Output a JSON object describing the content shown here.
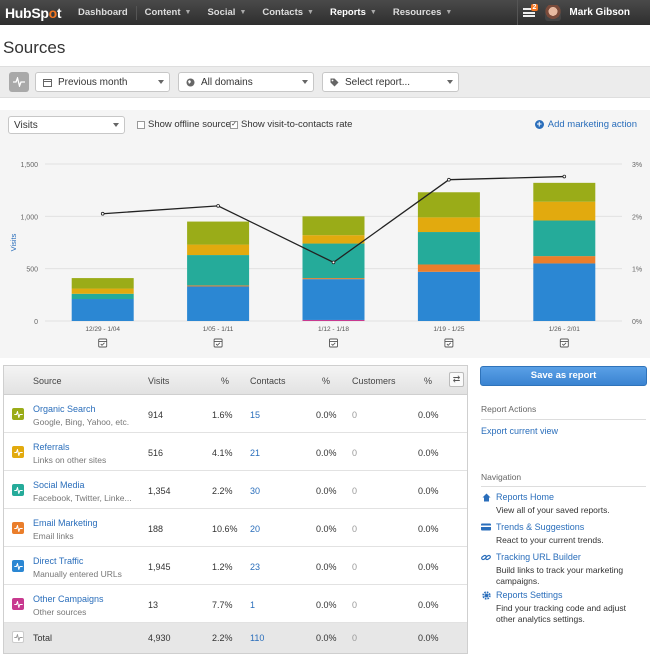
{
  "topbar": {
    "logo_main": "HubSp",
    "logo_dot": "o",
    "logo_end": "t",
    "nav": [
      {
        "label": "Dashboard",
        "caret": false,
        "active": false
      },
      {
        "label": "Content",
        "caret": true,
        "active": false
      },
      {
        "label": "Social",
        "caret": true,
        "active": false
      },
      {
        "label": "Contacts",
        "caret": true,
        "active": false
      },
      {
        "label": "Reports",
        "caret": true,
        "active": true
      },
      {
        "label": "Resources",
        "caret": true,
        "active": false
      }
    ],
    "notification_count": "2",
    "user_name": "Mark Gibson"
  },
  "page": {
    "title": "Sources"
  },
  "filters": {
    "date_range": "Previous month",
    "domains": "All domains",
    "report": "Select report..."
  },
  "chart_controls": {
    "metric": "Visits",
    "show_offline": "Show offline sources",
    "show_offline_checked": false,
    "show_visit_to_contacts": "Show visit-to-contacts rate",
    "show_visit_to_contacts_checked": true,
    "add_marketing_action": "Add marketing action"
  },
  "chart_data": {
    "type": "bar",
    "stacked": true,
    "categories": [
      "12/29 - 1/04",
      "1/05 - 1/11",
      "1/12 - 1/18",
      "1/19 - 1/25",
      "1/26 - 2/01"
    ],
    "ylabel": "Visits",
    "ylim": [
      0,
      1500
    ],
    "yticks": [
      "0",
      "500",
      "1,000",
      "1,500"
    ],
    "y2ticks": [
      "0%",
      "1%",
      "2%",
      "3%"
    ],
    "y2lim": [
      0,
      3
    ],
    "grid": true,
    "series": [
      {
        "name": "Other Campaigns",
        "color": "#c8398f",
        "values": [
          0,
          0,
          10,
          0,
          0
        ]
      },
      {
        "name": "Direct Traffic",
        "color": "#2b87d3",
        "values": [
          210,
          330,
          390,
          470,
          550
        ]
      },
      {
        "name": "Email Marketing",
        "color": "#ea7e2b",
        "values": [
          0,
          10,
          10,
          70,
          70
        ]
      },
      {
        "name": "Social Media",
        "color": "#25ab9a",
        "values": [
          50,
          290,
          330,
          310,
          340
        ]
      },
      {
        "name": "Referrals",
        "color": "#e2aa0e",
        "values": [
          50,
          100,
          80,
          140,
          180
        ]
      },
      {
        "name": "Organic Search",
        "color": "#9aac18",
        "values": [
          100,
          220,
          180,
          240,
          180
        ]
      }
    ],
    "line": {
      "values": [
        2.05,
        2.2,
        1.12,
        2.7,
        2.76
      ],
      "axis": "right",
      "color": "#222222"
    }
  },
  "table": {
    "headers": [
      "Source",
      "Visits",
      "%",
      "Contacts",
      "%",
      "Customers",
      "%"
    ],
    "rows": [
      {
        "name": "Organic Search",
        "sub": "Google, Bing, Yahoo, etc.",
        "color": "#9aac18",
        "visits": "914",
        "visit_pct": "1.6%",
        "contacts": "15",
        "contact_pct": "0.0%",
        "customers": "0",
        "customer_pct": "0.0%"
      },
      {
        "name": "Referrals",
        "sub": "Links on other sites",
        "color": "#e2aa0e",
        "visits": "516",
        "visit_pct": "4.1%",
        "contacts": "21",
        "contact_pct": "0.0%",
        "customers": "0",
        "customer_pct": "0.0%"
      },
      {
        "name": "Social Media",
        "sub": "Facebook, Twitter, Linke...",
        "color": "#25ab9a",
        "visits": "1,354",
        "visit_pct": "2.2%",
        "contacts": "30",
        "contact_pct": "0.0%",
        "customers": "0",
        "customer_pct": "0.0%"
      },
      {
        "name": "Email Marketing",
        "sub": "Email links",
        "color": "#ea7e2b",
        "visits": "188",
        "visit_pct": "10.6%",
        "contacts": "20",
        "contact_pct": "0.0%",
        "customers": "0",
        "customer_pct": "0.0%"
      },
      {
        "name": "Direct Traffic",
        "sub": "Manually entered URLs",
        "color": "#2b87d3",
        "visits": "1,945",
        "visit_pct": "1.2%",
        "contacts": "23",
        "contact_pct": "0.0%",
        "customers": "0",
        "customer_pct": "0.0%"
      },
      {
        "name": "Other Campaigns",
        "sub": "Other sources",
        "color": "#c8398f",
        "visits": "13",
        "visit_pct": "7.7%",
        "contacts": "1",
        "contact_pct": "0.0%",
        "customers": "0",
        "customer_pct": "0.0%"
      }
    ],
    "total": {
      "name": "Total",
      "visits": "4,930",
      "visit_pct": "2.2%",
      "contacts": "110",
      "contact_pct": "0.0%",
      "customers": "0",
      "customer_pct": "0.0%"
    }
  },
  "sidebar": {
    "save_button": "Save as report",
    "actions_heading": "Report Actions",
    "export_link": "Export current view",
    "nav_heading": "Navigation",
    "nav": [
      {
        "label": "Reports Home",
        "desc": "View all of your saved reports."
      },
      {
        "label": "Trends & Suggestions",
        "desc": "React to your current trends."
      },
      {
        "label": "Tracking URL Builder",
        "desc": "Build links to track your marketing campaigns."
      },
      {
        "label": "Reports Settings",
        "desc": "Find your tracking code and adjust other analytics settings."
      }
    ]
  }
}
